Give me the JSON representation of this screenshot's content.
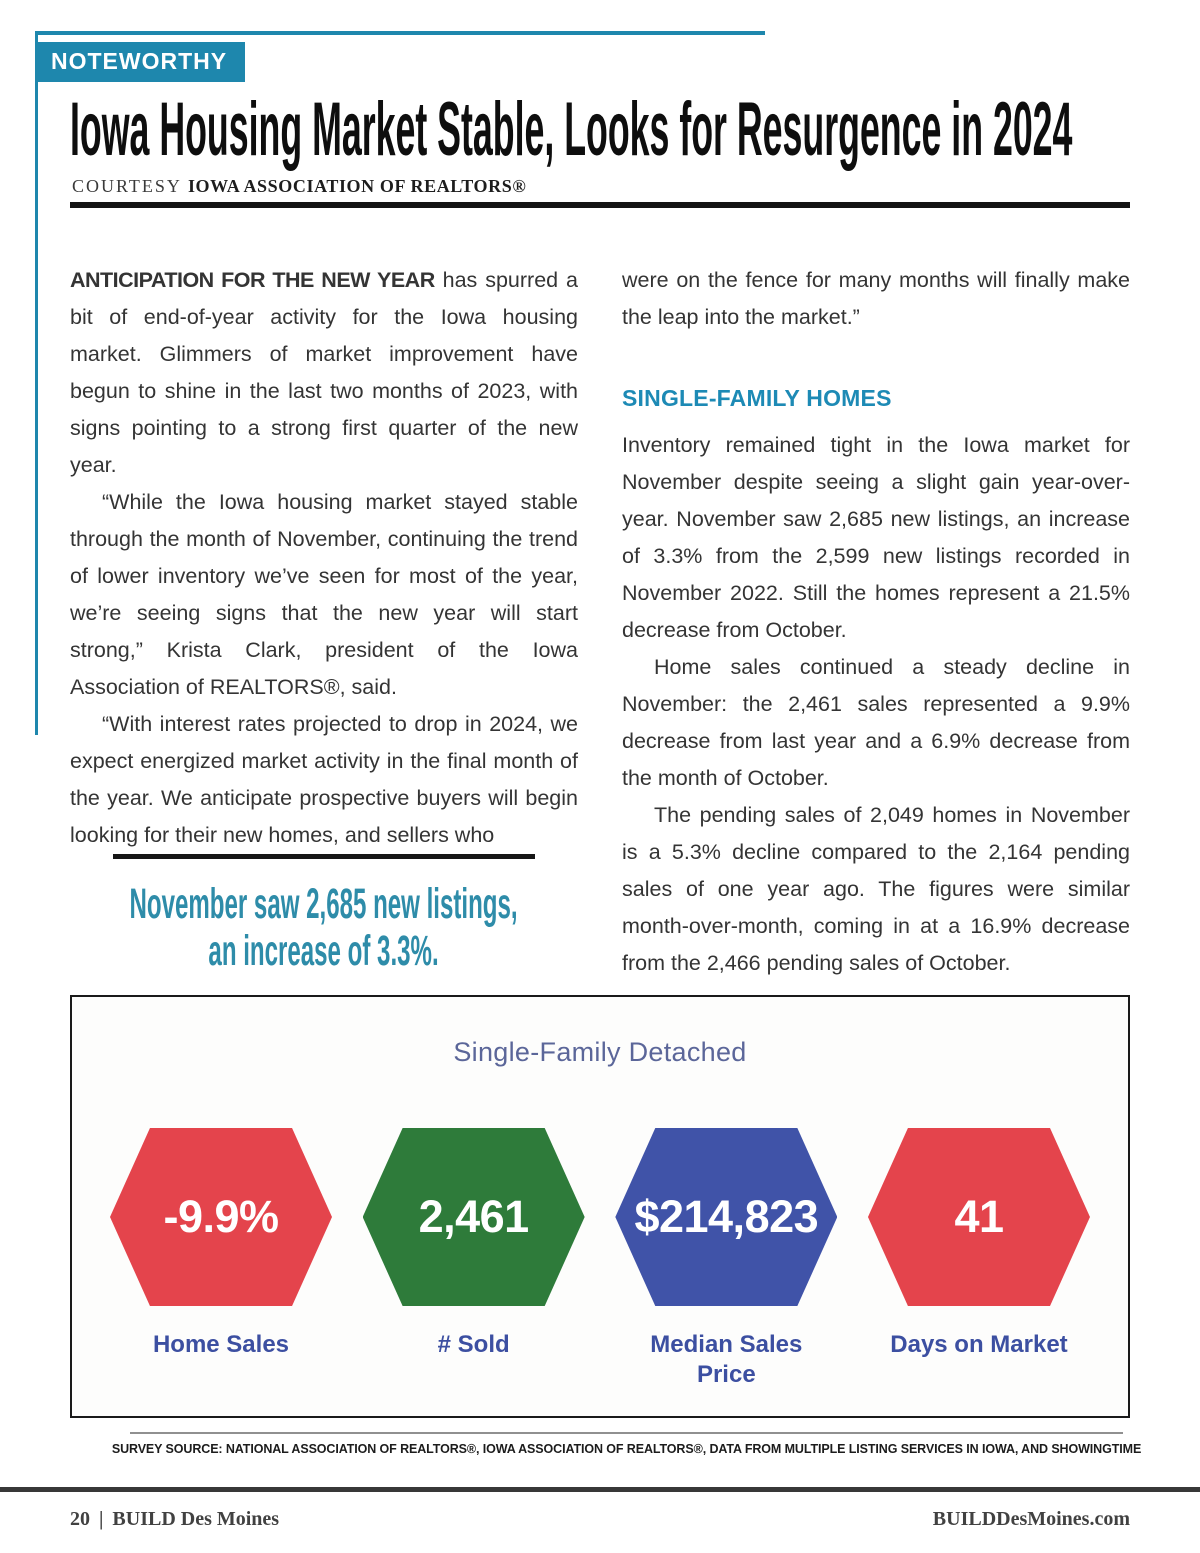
{
  "page": {
    "badge_label": "NOTEWORTHY",
    "headline": "Iowa Housing Market Stable, Looks for Resurgence in 2024",
    "byline": {
      "prefix": "COURTESY",
      "org": "IOWA ASSOCIATION OF REALTORS®"
    }
  },
  "article": {
    "left_column": {
      "lead_bold": "ANTICIPATION FOR THE NEW YEAR",
      "lead_rest": " has spurred a bit of end-of-year activity for the Iowa housing market. Glimmers of market improvement have begun to shine in the last two months of 2023, with signs pointing to a strong first quarter of the new year.",
      "para2": "“While the Iowa housing market stayed stable through the month of November, continuing the trend of lower inventory we’ve seen for most of the year, we’re seeing signs that the new year will start strong,” Krista Clark, president of the Iowa Association of REALTORS®, said.",
      "para3": "“With interest rates projected to drop in 2024, we expect energized market activity in the final month of the year. We anticipate prospective buyers will begin looking for their new homes, and sellers who"
    },
    "pull_quote": {
      "line1": "November saw 2,685 new listings,",
      "line2": "an increase of 3.3%."
    },
    "right_column": {
      "para0": "were on the fence for many months will finally make the leap into the market.”",
      "section_heading": "SINGLE-FAMILY HOMES",
      "para1": "Inventory remained tight in the Iowa market for November despite seeing a slight gain year-over-year. November saw 2,685 new listings, an increase of 3.3% from the 2,599 new listings recorded in November 2022. Still the homes represent a 21.5% decrease from October.",
      "para2": "Home sales continued a steady decline in November: the 2,461 sales represented a 9.9% decrease from last year and a 6.9% decrease from the month of October.",
      "para3": "The pending sales of 2,049 homes in November is a 5.3% decline compared to the 2,164 pending sales of one year ago. The figures were similar month-over-month, coming in at a 16.9% decrease from the 2,466 pending sales of October."
    }
  },
  "chart_data": {
    "type": "table",
    "title": "Single-Family Detached",
    "items": [
      {
        "value": "-9.9%",
        "label": "Home Sales",
        "color": "#E4444C"
      },
      {
        "value": "2,461",
        "label": "# Sold",
        "color": "#2E7B3A"
      },
      {
        "value": "$214,823",
        "label": "Median Sales Price",
        "color": "#4053A8"
      },
      {
        "value": "41",
        "label": "Days on Market",
        "color": "#E4444C"
      }
    ],
    "label_color": "#3C4FA1",
    "value_text_color": "#FFFFFF",
    "title_color": "#5B6699"
  },
  "survey_source": "SURVEY SOURCE: NATIONAL ASSOCIATION OF REALTORS®, IOWA ASSOCIATION OF REALTORS®, DATA FROM MULTIPLE LISTING SERVICES IN IOWA, AND SHOWINGTIME",
  "footer": {
    "page_number": "20",
    "separator": "|",
    "publication": "BUILD Des Moines",
    "website": "BUILDDesMoines.com"
  },
  "colors": {
    "accent_teal": "#1E87AD",
    "section_heading_teal": "#1D8AB5",
    "pull_quote_teal": "#2E8CA9"
  }
}
